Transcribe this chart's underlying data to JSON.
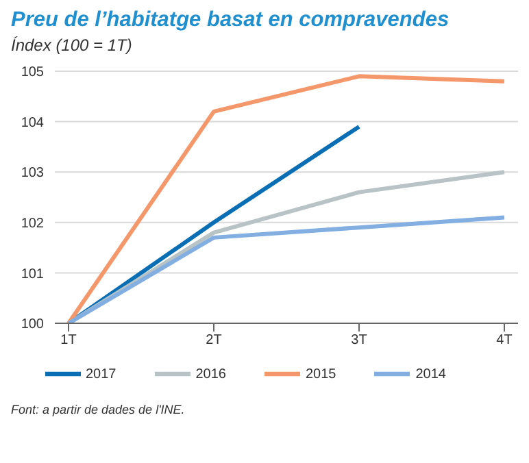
{
  "chart_data": {
    "type": "line",
    "title": "Preu de l’habitatge basat en compravendes",
    "subtitle": "Índex (100 = 1T)",
    "categories": [
      "1T",
      "2T",
      "3T",
      "4T"
    ],
    "series": [
      {
        "name": "2017",
        "color": "#0a6eb4",
        "values": [
          100,
          102.0,
          103.9,
          null
        ]
      },
      {
        "name": "2016",
        "color": "#b8c3c6",
        "values": [
          100,
          101.8,
          102.6,
          103.0
        ]
      },
      {
        "name": "2015",
        "color": "#f4976a",
        "values": [
          100,
          104.2,
          104.9,
          104.8
        ]
      },
      {
        "name": "2014",
        "color": "#82aee2",
        "values": [
          100,
          101.7,
          101.9,
          102.1
        ]
      }
    ],
    "ylim": [
      100,
      105
    ],
    "yticks": [
      100,
      101,
      102,
      103,
      104,
      105
    ],
    "grid": "y",
    "legend": "bottom",
    "marker": "none",
    "line_style": "solid",
    "annotations": [
      "Font: a partir de dades de l'INE."
    ]
  }
}
